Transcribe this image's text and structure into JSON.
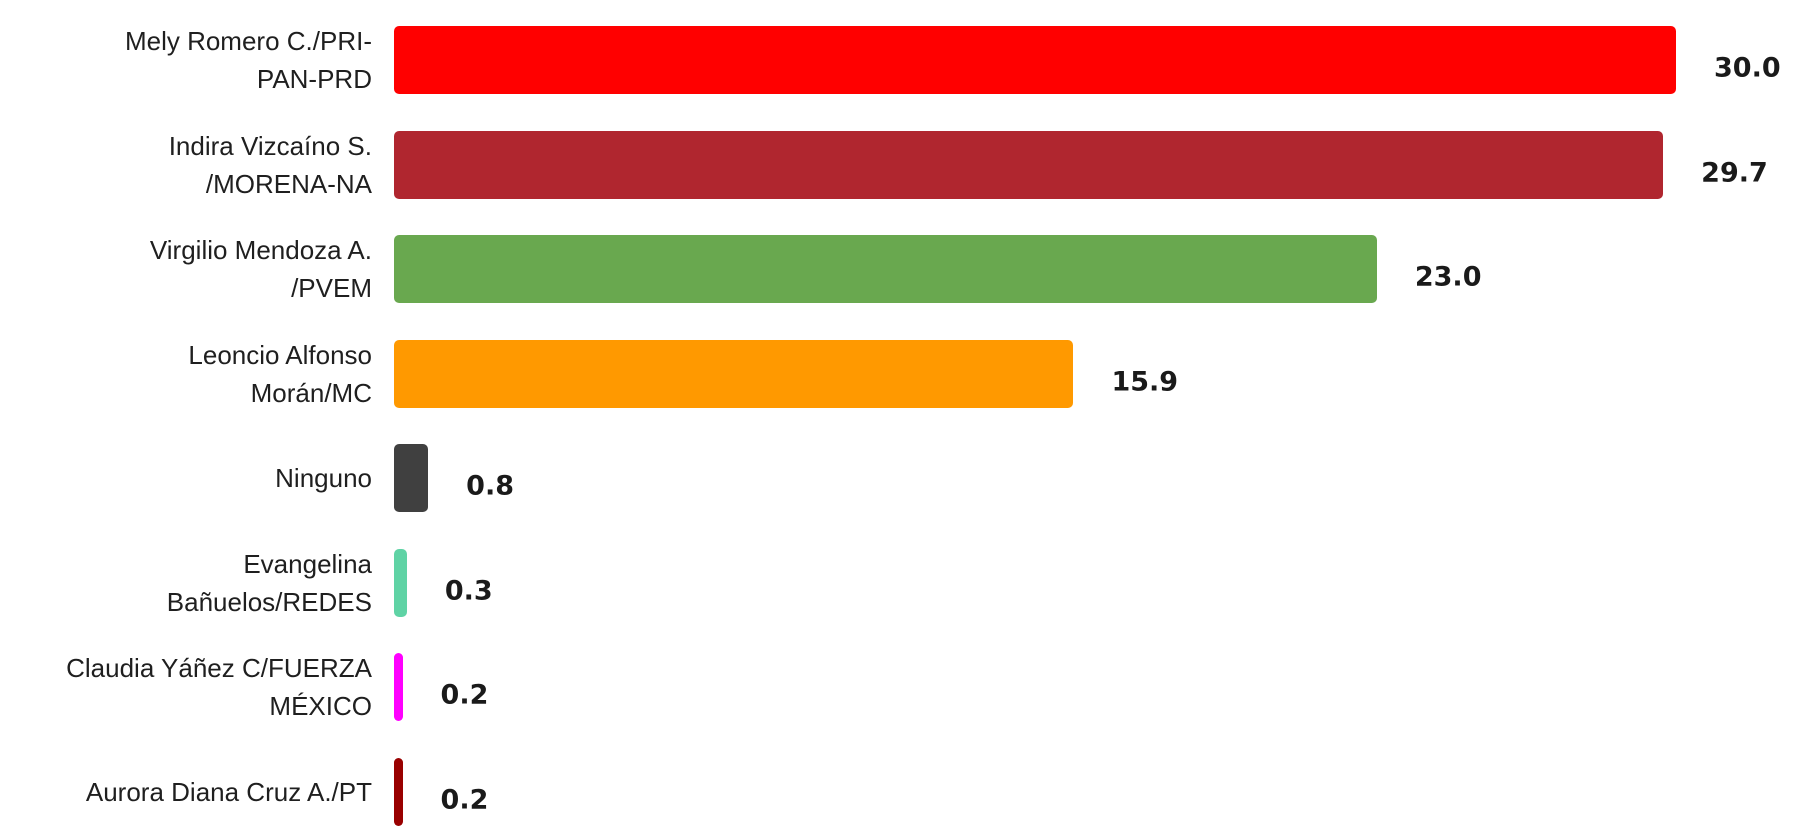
{
  "chart_data": {
    "type": "bar",
    "orientation": "horizontal",
    "title": "",
    "xlabel": "",
    "ylabel": "",
    "grid": false,
    "legend": "none",
    "xlim": [
      0,
      30
    ],
    "categories": [
      "Mely Romero C./PRI-\nPAN-PRD",
      "Indira Vizcaíno S.\n/MORENA-NA",
      "Virgilio Mendoza A.\n/PVEM",
      "Leoncio Alfonso\nMorán/MC",
      "Ninguno",
      "Evangelina\nBañuelos/REDES",
      "Claudia Yáñez C/FUERZA\nMÉXICO",
      "Aurora Diana Cruz A./PT"
    ],
    "values": [
      30.0,
      29.7,
      23.0,
      15.9,
      0.8,
      0.3,
      0.2,
      0.2
    ],
    "value_labels": [
      "30.0",
      "29.7",
      "23.0",
      "15.9",
      "0.8",
      "0.3",
      "0.2",
      "0.2"
    ],
    "colors": [
      "#ff0000",
      "#b0262f",
      "#69a84f",
      "#ff9900",
      "#404040",
      "#5fd3a5",
      "#ff00ff",
      "#990000"
    ]
  }
}
